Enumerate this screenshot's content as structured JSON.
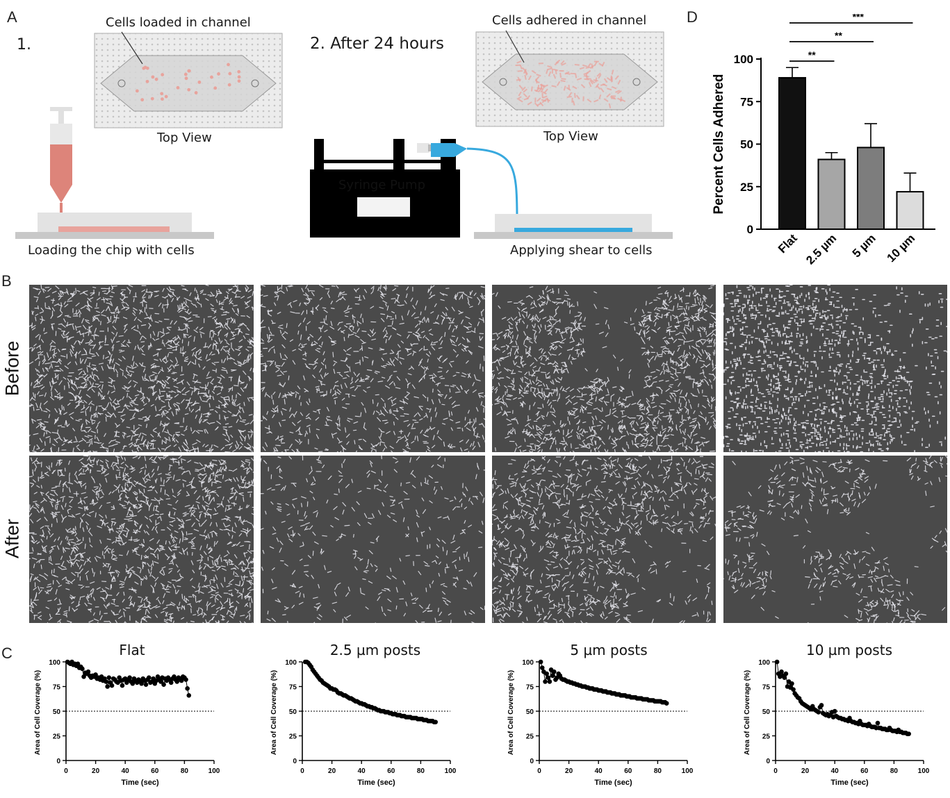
{
  "panels": {
    "a": {
      "letter": "A",
      "step1": "1.",
      "step2": "2. After 24 hours",
      "top_label_1": "Cells loaded in channel",
      "top_label_2": "Cells adhered in channel",
      "top_view": "Top View",
      "pump_label": "Syringe Pump",
      "caption_1": "Loading the chip with cells",
      "caption_2": "Applying shear to cells"
    },
    "b": {
      "letter": "B",
      "row_before": "Before",
      "row_after": "After"
    },
    "c": {
      "letter": "C"
    },
    "d": {
      "letter": "D"
    }
  },
  "colors": {
    "cell_pink": "#e8a39c",
    "tubing_blue": "#38a9de",
    "micrograph_bg": "#4a4a4a",
    "bar_flat": "#111111",
    "bar_2_5": "#a6a6a6",
    "bar_5": "#7d7d7d",
    "bar_10": "#dcdcdc"
  },
  "chart_data": [
    {
      "id": "D",
      "type": "bar",
      "categories": [
        "Flat",
        "2.5 µm",
        "5 µm",
        "10 µm"
      ],
      "values": [
        89,
        41,
        48,
        22
      ],
      "errors": [
        6,
        4,
        14,
        11
      ],
      "ylabel": "Percent Cells Adhered",
      "xlabel": "",
      "ylim": [
        0,
        100
      ],
      "yticks": [
        0,
        25,
        50,
        75,
        100
      ],
      "significance": [
        {
          "from": "Flat",
          "to": "2.5 µm",
          "label": "**"
        },
        {
          "from": "Flat",
          "to": "5 µm",
          "label": "**"
        },
        {
          "from": "Flat",
          "to": "10 µm",
          "label": "***"
        }
      ]
    },
    {
      "id": "C1",
      "type": "scatter",
      "title": "Flat",
      "xlabel": "Time (sec)",
      "ylabel": "Area of Cell Coverage (%)",
      "xlim": [
        0,
        100
      ],
      "ylim": [
        0,
        100
      ],
      "xticks": [
        0,
        20,
        40,
        60,
        80,
        100
      ],
      "yticks": [
        0,
        25,
        50,
        75,
        100
      ],
      "reference_line": 50,
      "x": [
        1,
        2,
        3,
        4,
        5,
        6,
        7,
        8,
        9,
        10,
        11,
        12,
        13,
        14,
        15,
        16,
        17,
        18,
        19,
        20,
        21,
        22,
        23,
        24,
        25,
        26,
        27,
        28,
        29,
        30,
        31,
        32,
        33,
        34,
        35,
        36,
        37,
        38,
        39,
        40,
        41,
        42,
        43,
        44,
        45,
        46,
        47,
        48,
        49,
        50,
        51,
        52,
        53,
        54,
        55,
        56,
        57,
        58,
        59,
        60,
        61,
        62,
        63,
        64,
        65,
        66,
        67,
        68,
        69,
        70,
        71,
        72,
        73,
        74,
        75,
        76,
        77,
        78,
        79,
        80,
        81,
        82,
        83
      ],
      "y": [
        100,
        99,
        98,
        100,
        97,
        98,
        96,
        98,
        94,
        95,
        93,
        85,
        89,
        88,
        90,
        86,
        84,
        86,
        85,
        87,
        83,
        84,
        82,
        85,
        81,
        83,
        80,
        75,
        84,
        79,
        76,
        83,
        82,
        80,
        79,
        84,
        81,
        76,
        82,
        83,
        79,
        82,
        84,
        80,
        78,
        83,
        81,
        79,
        82,
        80,
        78,
        83,
        81,
        77,
        82,
        84,
        79,
        80,
        83,
        78,
        81,
        85,
        82,
        80,
        84,
        77,
        83,
        81,
        84,
        82,
        79,
        83,
        85,
        82,
        80,
        84,
        83,
        81,
        85,
        84,
        82,
        73,
        66
      ]
    },
    {
      "id": "C2",
      "type": "scatter",
      "title": "2.5 µm posts",
      "xlabel": "Time (sec)",
      "ylabel": "Area of Cell Coverage (%)",
      "xlim": [
        0,
        100
      ],
      "ylim": [
        0,
        100
      ],
      "xticks": [
        0,
        20,
        40,
        60,
        80,
        100
      ],
      "yticks": [
        0,
        25,
        50,
        75,
        100
      ],
      "reference_line": 50,
      "x": [
        2,
        3,
        4,
        5,
        6,
        7,
        8,
        9,
        10,
        11,
        12,
        13,
        14,
        15,
        16,
        17,
        18,
        19,
        20,
        21,
        22,
        23,
        24,
        25,
        26,
        27,
        28,
        29,
        30,
        31,
        32,
        33,
        34,
        35,
        36,
        37,
        38,
        39,
        40,
        41,
        42,
        43,
        44,
        45,
        46,
        47,
        48,
        49,
        50,
        51,
        52,
        53,
        54,
        55,
        56,
        57,
        58,
        59,
        60,
        61,
        62,
        63,
        64,
        65,
        66,
        67,
        68,
        69,
        70,
        71,
        72,
        73,
        74,
        75,
        76,
        77,
        78,
        79,
        80,
        81,
        82,
        83,
        84,
        85,
        86,
        87,
        88,
        89,
        90
      ],
      "y": [
        100,
        100,
        99,
        97,
        95,
        92,
        90,
        88,
        86,
        84,
        82,
        81,
        79,
        78,
        77,
        76,
        75,
        73,
        73,
        72,
        72,
        71,
        69,
        68,
        68,
        67,
        66,
        66,
        65,
        64,
        63,
        63,
        62,
        61,
        60,
        60,
        59,
        58,
        58,
        57,
        57,
        56,
        55,
        55,
        54,
        54,
        53,
        53,
        52,
        51,
        51,
        50,
        50,
        50,
        49,
        49,
        49,
        48,
        48,
        47,
        47,
        47,
        46,
        46,
        46,
        45,
        45,
        45,
        44,
        44,
        44,
        44,
        43,
        43,
        43,
        43,
        42,
        42,
        42,
        42,
        41,
        41,
        41,
        40,
        40,
        40,
        40,
        39,
        39
      ]
    },
    {
      "id": "C3",
      "type": "scatter",
      "title": "5 µm posts",
      "xlabel": "Time (sec)",
      "ylabel": "Area of Cell Coverage (%)",
      "xlim": [
        0,
        100
      ],
      "ylim": [
        0,
        100
      ],
      "xticks": [
        0,
        20,
        40,
        60,
        80,
        100
      ],
      "yticks": [
        0,
        25,
        50,
        75,
        100
      ],
      "reference_line": 50,
      "x": [
        1,
        2,
        3,
        4,
        5,
        6,
        7,
        8,
        9,
        10,
        11,
        12,
        13,
        14,
        15,
        16,
        17,
        18,
        19,
        20,
        21,
        22,
        23,
        24,
        25,
        26,
        27,
        28,
        29,
        30,
        31,
        32,
        33,
        34,
        35,
        36,
        37,
        38,
        39,
        40,
        41,
        42,
        43,
        44,
        45,
        46,
        47,
        48,
        49,
        50,
        51,
        52,
        53,
        54,
        55,
        56,
        57,
        58,
        59,
        60,
        61,
        62,
        63,
        64,
        65,
        66,
        67,
        68,
        69,
        70,
        71,
        72,
        73,
        74,
        75,
        76,
        77,
        78,
        79,
        80,
        81,
        82,
        83,
        84,
        85,
        86
      ],
      "y": [
        100,
        94,
        90,
        80,
        88,
        84,
        80,
        92,
        86,
        90,
        82,
        84,
        88,
        86,
        83,
        82,
        82,
        81,
        80,
        80,
        79,
        79,
        78,
        78,
        77,
        77,
        76,
        76,
        75,
        75,
        75,
        74,
        74,
        73,
        73,
        73,
        72,
        72,
        72,
        71,
        71,
        71,
        70,
        70,
        70,
        69,
        69,
        69,
        68,
        68,
        68,
        67,
        67,
        67,
        66,
        66,
        66,
        66,
        65,
        65,
        65,
        64,
        64,
        64,
        64,
        63,
        63,
        63,
        63,
        62,
        62,
        62,
        62,
        61,
        61,
        61,
        61,
        60,
        60,
        60,
        60,
        60,
        59,
        59,
        59,
        58
      ]
    },
    {
      "id": "C4",
      "type": "scatter",
      "title": "10 µm posts",
      "xlabel": "Time (sec)",
      "ylabel": "Area of Cell Coverage (%)",
      "xlim": [
        0,
        100
      ],
      "ylim": [
        0,
        100
      ],
      "xticks": [
        0,
        20,
        40,
        60,
        80,
        100
      ],
      "yticks": [
        0,
        25,
        50,
        75,
        100
      ],
      "reference_line": 50,
      "x": [
        1,
        2,
        3,
        4,
        5,
        6,
        7,
        8,
        9,
        10,
        11,
        12,
        13,
        14,
        15,
        16,
        17,
        18,
        19,
        20,
        21,
        22,
        23,
        24,
        25,
        26,
        27,
        28,
        29,
        30,
        31,
        32,
        33,
        34,
        35,
        36,
        37,
        38,
        39,
        40,
        41,
        42,
        43,
        44,
        45,
        46,
        47,
        48,
        49,
        50,
        51,
        52,
        53,
        54,
        55,
        56,
        57,
        58,
        59,
        60,
        61,
        62,
        63,
        64,
        65,
        66,
        67,
        68,
        69,
        70,
        71,
        72,
        73,
        74,
        75,
        76,
        77,
        78,
        79,
        80,
        81,
        82,
        83,
        84,
        85,
        86,
        87,
        88,
        89,
        90
      ],
      "y": [
        100,
        88,
        85,
        90,
        86,
        84,
        88,
        75,
        80,
        74,
        78,
        72,
        68,
        66,
        64,
        63,
        60,
        58,
        57,
        56,
        55,
        54,
        53,
        52,
        55,
        52,
        51,
        50,
        49,
        54,
        56,
        48,
        47,
        46,
        47,
        45,
        46,
        49,
        44,
        50,
        45,
        44,
        43,
        43,
        42,
        42,
        41,
        41,
        40,
        43,
        40,
        39,
        39,
        38,
        38,
        37,
        40,
        37,
        36,
        36,
        36,
        35,
        37,
        35,
        34,
        34,
        34,
        33,
        38,
        33,
        33,
        32,
        32,
        32,
        31,
        31,
        33,
        31,
        30,
        30,
        30,
        29,
        31,
        29,
        29,
        28,
        28,
        28,
        27,
        27
      ]
    }
  ]
}
